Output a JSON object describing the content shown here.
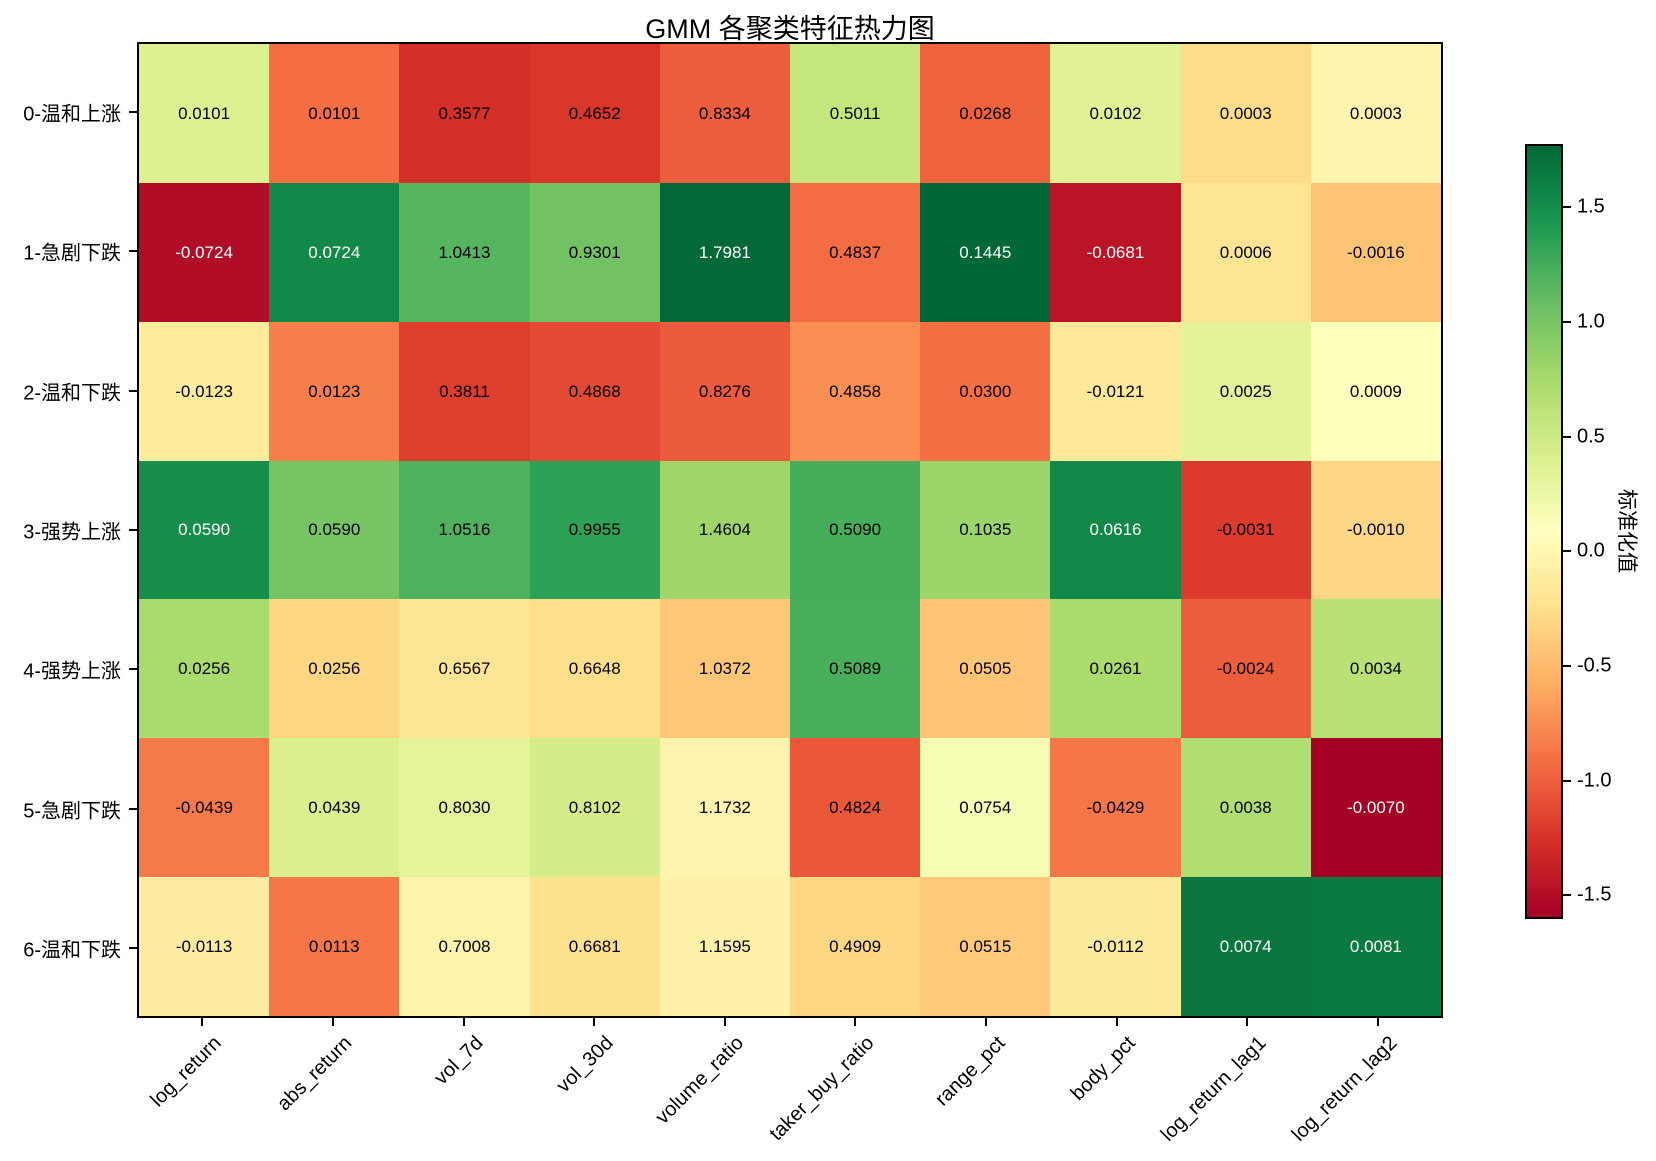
{
  "chart_data": {
    "type": "heatmap",
    "title": "GMM 各聚类特征热力图",
    "rows": [
      "0-温和上涨",
      "1-急剧下跌",
      "2-温和下跌",
      "3-强势上涨",
      "4-强势上涨",
      "5-急剧下跌",
      "6-温和下跌"
    ],
    "columns": [
      "log_return",
      "abs_return",
      "vol_7d",
      "vol_30d",
      "volume_ratio",
      "taker_buy_ratio",
      "range_pct",
      "body_pct",
      "log_return_lag1",
      "log_return_lag2"
    ],
    "values": [
      [
        0.0101,
        0.0101,
        0.3577,
        0.4652,
        0.8334,
        0.5011,
        0.0268,
        0.0102,
        0.0003,
        0.0003
      ],
      [
        -0.0724,
        0.0724,
        1.0413,
        0.9301,
        1.7981,
        0.4837,
        0.1445,
        -0.0681,
        0.0006,
        -0.0016
      ],
      [
        -0.0123,
        0.0123,
        0.3811,
        0.4868,
        0.8276,
        0.4858,
        0.03,
        -0.0121,
        0.0025,
        0.0009
      ],
      [
        0.059,
        0.059,
        1.0516,
        0.9955,
        1.4604,
        0.509,
        0.1035,
        0.0616,
        -0.0031,
        -0.001
      ],
      [
        0.0256,
        0.0256,
        0.6567,
        0.6648,
        1.0372,
        0.5089,
        0.0505,
        0.0261,
        -0.0024,
        0.0034
      ],
      [
        -0.0439,
        0.0439,
        0.803,
        0.8102,
        1.1732,
        0.4824,
        0.0754,
        -0.0429,
        0.0038,
        -0.007
      ],
      [
        -0.0113,
        0.0113,
        0.7008,
        0.6681,
        1.1595,
        0.4909,
        0.0515,
        -0.0112,
        0.0074,
        0.0081
      ]
    ],
    "value_decimals": 4,
    "color_scale": "per-column z-score (sample std); colors span global z min..max",
    "colorbar": {
      "label": "标准化值",
      "ticks": [
        1.5,
        1.0,
        0.5,
        0.0,
        -0.5,
        -1.0,
        -1.5
      ]
    },
    "colormap": {
      "name": "RdYlGn",
      "colors": [
        "#a50026",
        "#d73027",
        "#f46d43",
        "#fdae61",
        "#fee08b",
        "#ffffbf",
        "#d9ef8b",
        "#a6d96a",
        "#66bd63",
        "#1a9850",
        "#006837"
      ]
    },
    "annotation": {
      "dark_text": "#000000",
      "light_text": "#ffffff",
      "light_text_abs_z_threshold": 1.4
    },
    "axes": {
      "spine_color": "#000000",
      "background": "#ffffff"
    }
  }
}
